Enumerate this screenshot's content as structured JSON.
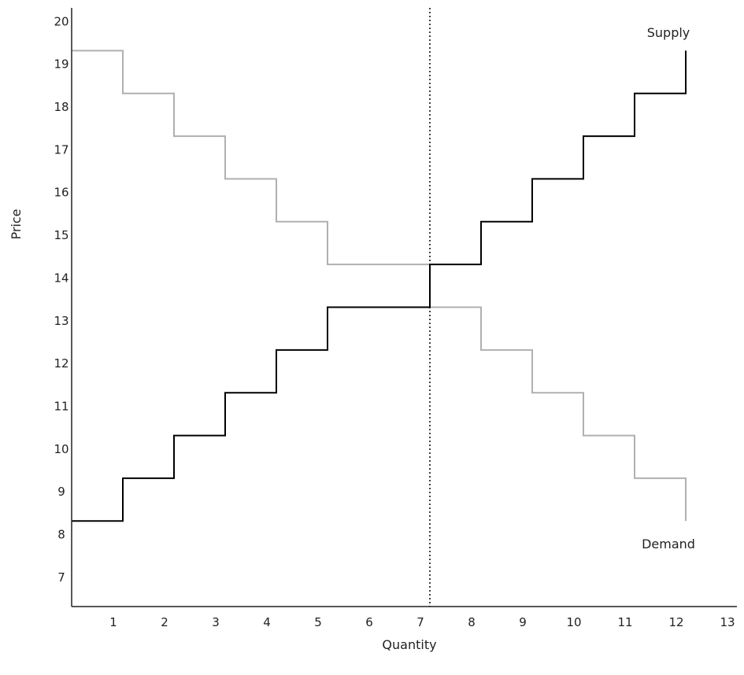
{
  "chart_data": {
    "type": "line",
    "title": "",
    "xlabel": "Quantity",
    "ylabel": "Price",
    "xlim": [
      0,
      13
    ],
    "ylim": [
      6.3,
      20.3
    ],
    "x_ticks": [
      "1",
      "2",
      "3",
      "4",
      "5",
      "6",
      "7",
      "8",
      "9",
      "10",
      "11",
      "12",
      "13"
    ],
    "y_ticks": [
      "7",
      "8",
      "9",
      "10",
      "11",
      "12",
      "13",
      "14",
      "15",
      "16",
      "17",
      "18",
      "19",
      "20"
    ],
    "grid": false,
    "series": [
      {
        "name": "Supply",
        "color": "#000000",
        "step": true,
        "points": [
          [
            0,
            8.3
          ],
          [
            1,
            8.3
          ],
          [
            1,
            9.3
          ],
          [
            2,
            9.3
          ],
          [
            2,
            10.3
          ],
          [
            3,
            10.3
          ],
          [
            3,
            11.3
          ],
          [
            4,
            11.3
          ],
          [
            4,
            12.3
          ],
          [
            5,
            12.3
          ],
          [
            5,
            13.3
          ],
          [
            7,
            13.3
          ],
          [
            7,
            14.3
          ],
          [
            8,
            14.3
          ],
          [
            8,
            15.3
          ],
          [
            9,
            15.3
          ],
          [
            9,
            16.3
          ],
          [
            10,
            16.3
          ],
          [
            10,
            17.3
          ],
          [
            11,
            17.3
          ],
          [
            11,
            18.3
          ],
          [
            12,
            18.3
          ],
          [
            12,
            19.3
          ]
        ]
      },
      {
        "name": "Demand",
        "color": "#b0b0b0",
        "step": true,
        "points": [
          [
            0,
            19.3
          ],
          [
            1,
            19.3
          ],
          [
            1,
            18.3
          ],
          [
            2,
            18.3
          ],
          [
            2,
            17.3
          ],
          [
            3,
            17.3
          ],
          [
            3,
            16.3
          ],
          [
            4,
            16.3
          ],
          [
            4,
            15.3
          ],
          [
            5,
            15.3
          ],
          [
            5,
            14.3
          ],
          [
            7,
            14.3
          ],
          [
            7,
            13.3
          ],
          [
            8,
            13.3
          ],
          [
            8,
            12.3
          ],
          [
            9,
            12.3
          ],
          [
            9,
            11.3
          ],
          [
            10,
            11.3
          ],
          [
            10,
            10.3
          ],
          [
            11,
            10.3
          ],
          [
            11,
            9.3
          ],
          [
            12,
            9.3
          ],
          [
            12,
            8.3
          ]
        ]
      }
    ],
    "reference_line": {
      "orientation": "vertical",
      "x": 7,
      "style": "dotted",
      "color": "#000000"
    }
  }
}
